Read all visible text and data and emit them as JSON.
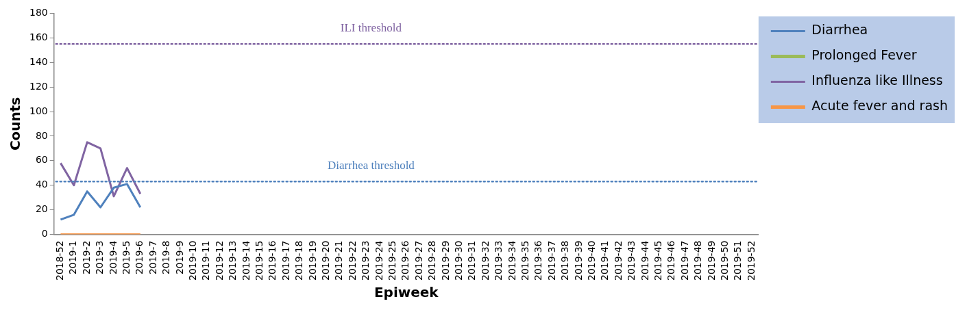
{
  "chart_data": {
    "type": "line",
    "xlabel": "Epiweek",
    "ylabel": "Counts",
    "categories": [
      "2018-52",
      "2019-1",
      "2019-2",
      "2019-3",
      "2019-4",
      "2019-5",
      "2019-6",
      "2019-7",
      "2019-8",
      "2019-9",
      "2019-10",
      "2019-11",
      "2019-12",
      "2019-13",
      "2019-14",
      "2019-15",
      "2019-16",
      "2019-17",
      "2019-18",
      "2019-19",
      "2019-20",
      "2019-21",
      "2019-22",
      "2019-23",
      "2019-24",
      "2019-25",
      "2019-26",
      "2019-27",
      "2019-28",
      "2019-29",
      "2019-30",
      "2019-31",
      "2019-32",
      "2019-33",
      "2019-34",
      "2019-35",
      "2019-36",
      "2019-37",
      "2019-38",
      "2019-39",
      "2019-40",
      "2019-41",
      "2019-42",
      "2019-43",
      "2019-44",
      "2019-45",
      "2019-46",
      "2019-47",
      "2019-48",
      "2019-49",
      "2019-50",
      "2019-51",
      "2019-52"
    ],
    "series": [
      {
        "name": "Diarrhea",
        "color": "#4f81bd",
        "values": [
          12,
          16,
          35,
          22,
          38,
          41,
          22,
          null,
          null,
          null,
          null,
          null,
          null,
          null,
          null,
          null,
          null,
          null,
          null,
          null,
          null,
          null,
          null,
          null,
          null,
          null,
          null,
          null,
          null,
          null,
          null,
          null,
          null,
          null,
          null,
          null,
          null,
          null,
          null,
          null,
          null,
          null,
          null,
          null,
          null,
          null,
          null,
          null,
          null,
          null,
          null,
          null,
          null
        ]
      },
      {
        "name": "Prolonged Fever",
        "color": "#9bbb59",
        "values": [
          null,
          null,
          null,
          null,
          null,
          null,
          null,
          null,
          null,
          null,
          null,
          null,
          null,
          null,
          null,
          null,
          null,
          null,
          null,
          null,
          null,
          null,
          null,
          null,
          null,
          null,
          null,
          null,
          null,
          null,
          null,
          null,
          null,
          null,
          null,
          null,
          null,
          null,
          null,
          null,
          null,
          null,
          null,
          null,
          null,
          null,
          null,
          null,
          null,
          null,
          null,
          null,
          null
        ]
      },
      {
        "name": "Influenza like Illness",
        "color": "#8064a2",
        "values": [
          58,
          40,
          75,
          70,
          31,
          54,
          33,
          null,
          null,
          null,
          null,
          null,
          null,
          null,
          null,
          null,
          null,
          null,
          null,
          null,
          null,
          null,
          null,
          null,
          null,
          null,
          null,
          null,
          null,
          null,
          null,
          null,
          null,
          null,
          null,
          null,
          null,
          null,
          null,
          null,
          null,
          null,
          null,
          null,
          null,
          null,
          null,
          null,
          null,
          null,
          null,
          null,
          null
        ]
      },
      {
        "name": "Acute fever and rash",
        "color": "#f79646",
        "values": [
          0,
          0,
          0,
          0,
          0,
          0,
          0,
          null,
          null,
          null,
          null,
          null,
          null,
          null,
          null,
          null,
          null,
          null,
          null,
          null,
          null,
          null,
          null,
          null,
          null,
          null,
          null,
          null,
          null,
          null,
          null,
          null,
          null,
          null,
          null,
          null,
          null,
          null,
          null,
          null,
          null,
          null,
          null,
          null,
          null,
          null,
          null,
          null,
          null,
          null,
          null,
          null,
          null
        ]
      }
    ],
    "ylim": [
      0,
      180
    ],
    "yticks": [
      0,
      20,
      40,
      60,
      80,
      100,
      120,
      140,
      160,
      180
    ],
    "ref_lines": [
      {
        "axis": "y",
        "value": 155,
        "label": "ILI threshold",
        "color": "#8064a2",
        "line_style": "dotted"
      },
      {
        "axis": "y",
        "value": 43,
        "label": "Diarrhea threshold",
        "color": "#4f81bd",
        "line_style": "dotted"
      }
    ],
    "grid": false,
    "legend": "top right",
    "marker": "none",
    "line_style": "solid"
  }
}
